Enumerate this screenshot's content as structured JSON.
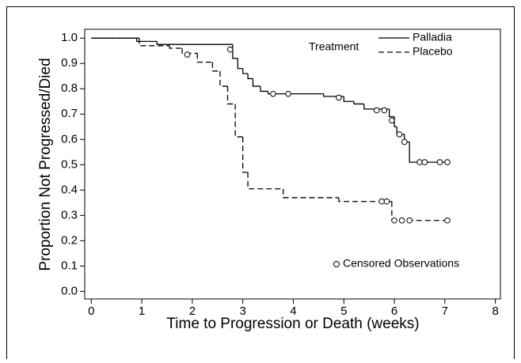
{
  "chart_data": {
    "type": "step",
    "xlabel": "Time to Progression or Death (weeks)",
    "ylabel": "Proportion Not Progressed/Died",
    "xlim": [
      -0.13,
      8.1
    ],
    "ylim": [
      -0.03,
      1.035
    ],
    "xticks": [
      0,
      1,
      2,
      3,
      4,
      5,
      6,
      7,
      8
    ],
    "yticks": [
      {
        "value": 0,
        "label": "0.0"
      },
      0.1,
      0.2,
      0.3,
      0.4,
      0.5,
      0.6,
      0.7,
      0.8,
      0.9,
      {
        "value": 1,
        "label": "1.0"
      }
    ],
    "legend_title": "Treatment",
    "censor_label": "Censored Observations",
    "series": [
      {
        "name": "Palladia",
        "color": "#000000",
        "dash": "solid",
        "x": [
          0,
          0.9,
          1.3,
          2.8,
          2.9,
          3.0,
          3.1,
          3.2,
          3.35,
          3.5,
          4.6,
          5.0,
          5.2,
          5.4,
          5.9,
          6.0,
          6.05,
          6.2,
          6.3,
          7.05
        ],
        "values": [
          1.0,
          0.987,
          0.975,
          0.92,
          0.88,
          0.86,
          0.84,
          0.81,
          0.79,
          0.78,
          0.77,
          0.75,
          0.74,
          0.72,
          0.69,
          0.65,
          0.62,
          0.59,
          0.51,
          0.51
        ],
        "censored": {
          "x": [
            2.75,
            3.6,
            3.9,
            4.9,
            5.65,
            5.8,
            5.95,
            6.1,
            6.2,
            6.5,
            6.6,
            6.9,
            7.05
          ],
          "values": [
            0.955,
            0.78,
            0.78,
            0.765,
            0.715,
            0.715,
            0.675,
            0.62,
            0.59,
            0.51,
            0.51,
            0.51,
            0.51
          ]
        }
      },
      {
        "name": "Placebo",
        "color": "#000000",
        "dash": "dashed",
        "x": [
          0,
          0.95,
          1.55,
          1.8,
          2.1,
          2.4,
          2.55,
          2.7,
          2.85,
          3.0,
          3.1,
          3.8,
          4.9,
          5.95,
          7.05
        ],
        "values": [
          1.0,
          0.97,
          0.96,
          0.94,
          0.905,
          0.87,
          0.81,
          0.74,
          0.61,
          0.47,
          0.405,
          0.37,
          0.355,
          0.28,
          0.28
        ],
        "censored": {
          "x": [
            1.9,
            5.75,
            5.85,
            6.0,
            6.15,
            6.3,
            7.05
          ],
          "values": [
            0.935,
            0.355,
            0.355,
            0.28,
            0.28,
            0.28,
            0.28
          ]
        }
      }
    ]
  }
}
